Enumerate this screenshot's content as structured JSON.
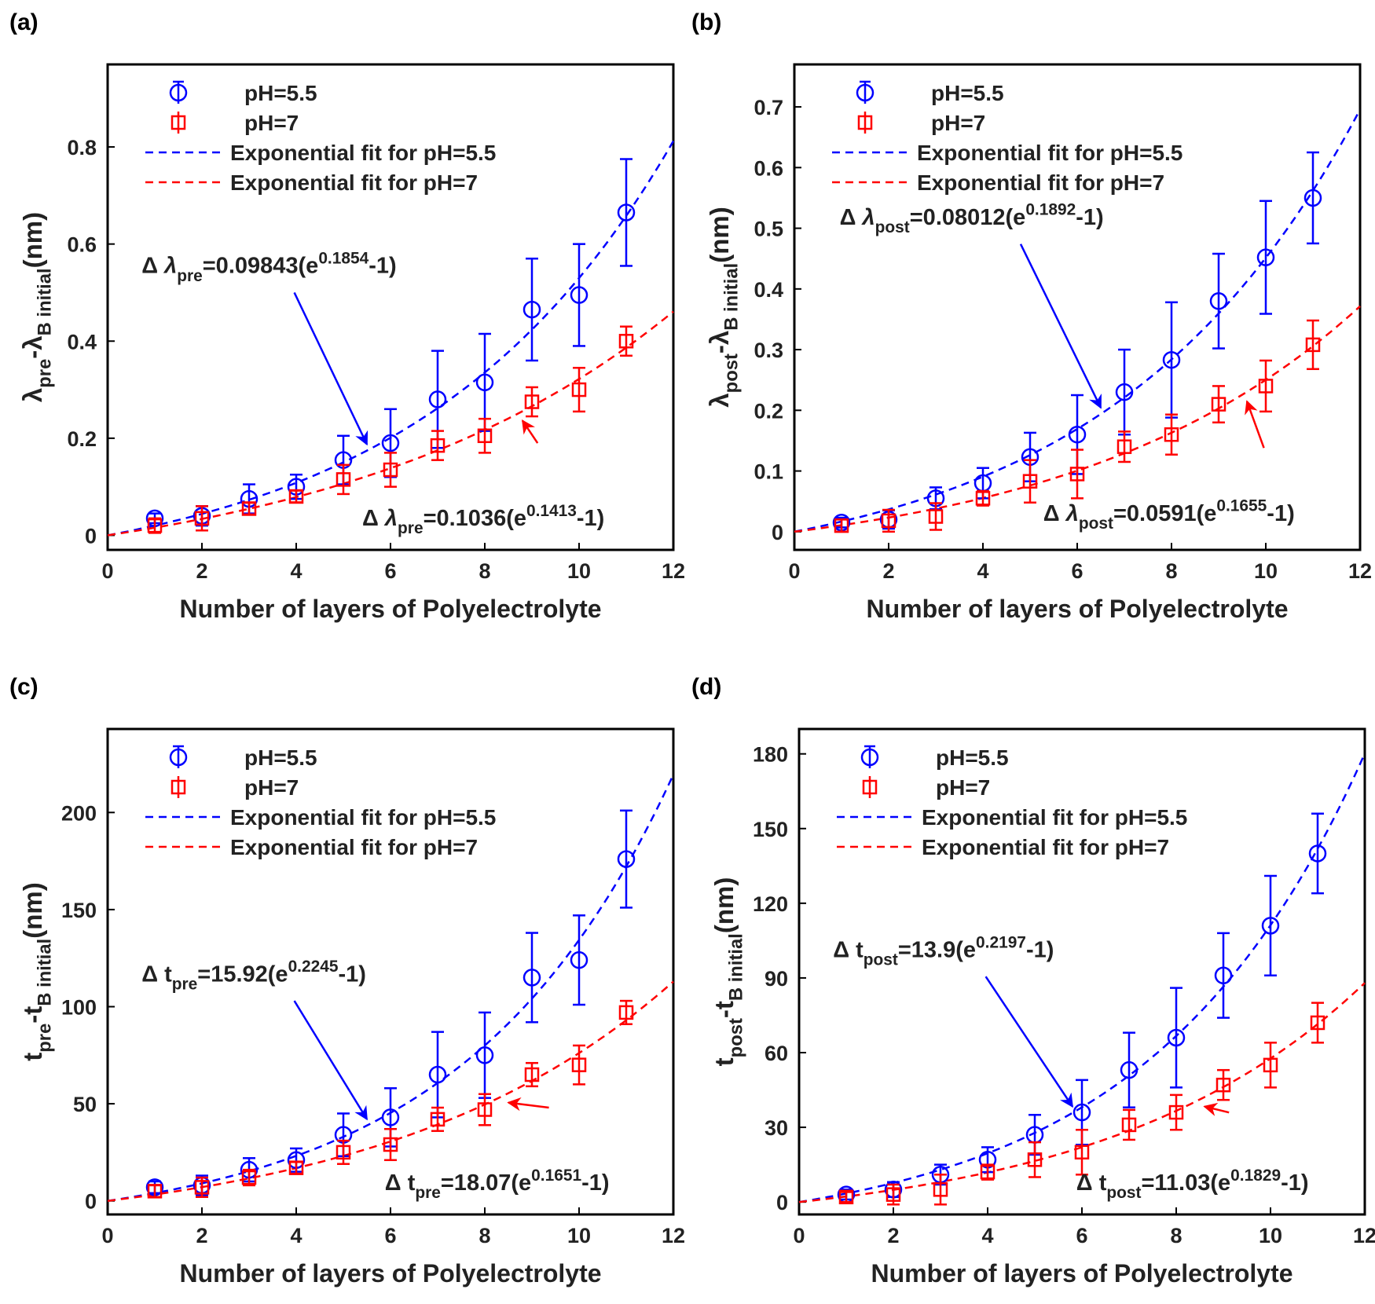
{
  "chart_data": [
    {
      "panel_label": "(a)",
      "type": "scatter",
      "xlabel": "Number of layers of Polyelectrolyte",
      "ylabel": {
        "parts": [
          {
            "t": "λ"
          },
          {
            "t": "pre",
            "s": "sub"
          },
          {
            "t": "-λ"
          },
          {
            "t": "B initial",
            "s": "sub"
          },
          {
            "t": "(nm)"
          }
        ]
      },
      "xlim": [
        0,
        12
      ],
      "ylim": [
        -0.03,
        0.97
      ],
      "xticks": [
        "0",
        "2",
        "4",
        "6",
        "8",
        "10",
        "12"
      ],
      "yticks": [
        "0",
        "0.2",
        "0.4",
        "0.6",
        "0.8"
      ],
      "legend_position": "top-left",
      "legend": [
        "pH=5.5",
        "pH=7",
        "Exponential fit for pH=5.5",
        "Exponential fit for pH=7"
      ],
      "x": [
        1,
        2,
        3,
        4,
        5,
        6,
        7,
        8,
        9,
        10,
        11
      ],
      "series": [
        {
          "name": "pH=5.5",
          "color": "#0000ff",
          "marker": "circle",
          "values": [
            0.035,
            0.04,
            0.075,
            0.1,
            0.155,
            0.19,
            0.28,
            0.315,
            0.465,
            0.495,
            0.665
          ],
          "errors": [
            0.01,
            0.02,
            0.03,
            0.025,
            0.05,
            0.07,
            0.1,
            0.1,
            0.105,
            0.105,
            0.11
          ]
        },
        {
          "name": "pH=7",
          "color": "#ff0000",
          "marker": "square",
          "values": [
            0.02,
            0.035,
            0.055,
            0.08,
            0.115,
            0.135,
            0.185,
            0.205,
            0.275,
            0.3,
            0.4
          ],
          "errors": [
            0.015,
            0.025,
            0.012,
            0.012,
            0.03,
            0.035,
            0.03,
            0.035,
            0.03,
            0.045,
            0.03
          ]
        }
      ],
      "fits": [
        {
          "name": "Exponential fit for pH=5.5",
          "color": "#0000ff",
          "a": 0.09843,
          "b": 0.1854
        },
        {
          "name": "Exponential fit for pH=7",
          "color": "#ff0000",
          "a": 0.1036,
          "b": 0.1413
        }
      ],
      "annotations": [
        {
          "color": "#0000ff",
          "text": {
            "parts": [
              {
                "t": "Δ "
              },
              {
                "t": "λ",
                "i": true
              },
              {
                "t": "pre",
                "s": "sub"
              },
              {
                "t": "=0.09843(e"
              },
              {
                "t": "0.1854",
                "s": "sup"
              },
              {
                "t": "-1)"
              }
            ]
          }
        },
        {
          "color": "#ff0000",
          "text": {
            "parts": [
              {
                "t": "Δ "
              },
              {
                "t": "λ",
                "i": true
              },
              {
                "t": "pre",
                "s": "sub"
              },
              {
                "t": "=0.1036(e"
              },
              {
                "t": "0.1413",
                "s": "sup"
              },
              {
                "t": "-1)"
              }
            ]
          }
        }
      ]
    },
    {
      "panel_label": "(b)",
      "type": "scatter",
      "xlabel": "Number of layers of Polyelectrolyte",
      "ylabel": {
        "parts": [
          {
            "t": "λ"
          },
          {
            "t": "post",
            "s": "sub"
          },
          {
            "t": "-λ"
          },
          {
            "t": "B initial",
            "s": "sub"
          },
          {
            "t": "(nm)"
          }
        ]
      },
      "xlim": [
        0,
        12
      ],
      "ylim": [
        -0.03,
        0.77
      ],
      "xticks": [
        "0",
        "2",
        "4",
        "6",
        "8",
        "10",
        "12"
      ],
      "yticks": [
        "0",
        "0.1",
        "0.2",
        "0.3",
        "0.4",
        "0.5",
        "0.6",
        "0.7"
      ],
      "legend_position": "top-left",
      "legend": [
        "pH=5.5",
        "pH=7",
        "Exponential fit for pH=5.5",
        "Exponential fit for pH=7"
      ],
      "x": [
        1,
        2,
        3,
        4,
        5,
        6,
        7,
        8,
        9,
        10,
        11
      ],
      "series": [
        {
          "name": "pH=5.5",
          "color": "#0000ff",
          "marker": "circle",
          "values": [
            0.015,
            0.02,
            0.055,
            0.08,
            0.123,
            0.16,
            0.23,
            0.283,
            0.38,
            0.452,
            0.55
          ],
          "errors": [
            0.008,
            0.015,
            0.018,
            0.025,
            0.04,
            0.065,
            0.07,
            0.095,
            0.078,
            0.093,
            0.075
          ]
        },
        {
          "name": "pH=7",
          "color": "#ff0000",
          "marker": "square",
          "values": [
            0.01,
            0.018,
            0.025,
            0.055,
            0.083,
            0.095,
            0.14,
            0.16,
            0.21,
            0.24,
            0.308
          ],
          "errors": [
            0.01,
            0.018,
            0.022,
            0.012,
            0.035,
            0.04,
            0.025,
            0.033,
            0.03,
            0.042,
            0.04
          ]
        }
      ],
      "fits": [
        {
          "name": "Exponential fit for pH=5.5",
          "color": "#0000ff",
          "a": 0.08012,
          "b": 0.1892
        },
        {
          "name": "Exponential fit for pH=7",
          "color": "#ff0000",
          "a": 0.0591,
          "b": 0.1655
        }
      ],
      "annotations": [
        {
          "color": "#0000ff",
          "text": {
            "parts": [
              {
                "t": "Δ "
              },
              {
                "t": "λ",
                "i": true
              },
              {
                "t": "post",
                "s": "sub"
              },
              {
                "t": "=0.08012(e"
              },
              {
                "t": "0.1892",
                "s": "sup"
              },
              {
                "t": "-1)"
              }
            ]
          }
        },
        {
          "color": "#ff0000",
          "text": {
            "parts": [
              {
                "t": "Δ "
              },
              {
                "t": "λ",
                "i": true
              },
              {
                "t": "post",
                "s": "sub"
              },
              {
                "t": "=0.0591(e"
              },
              {
                "t": "0.1655",
                "s": "sup"
              },
              {
                "t": "-1)"
              }
            ]
          }
        }
      ]
    },
    {
      "panel_label": "(c)",
      "type": "scatter",
      "xlabel": "Number of layers of Polyelectrolyte",
      "ylabel": {
        "parts": [
          {
            "t": "t"
          },
          {
            "t": "pre",
            "s": "sub"
          },
          {
            "t": "-t"
          },
          {
            "t": "B initial",
            "s": "sub"
          },
          {
            "t": "(nm)"
          }
        ]
      },
      "xlim": [
        0,
        12
      ],
      "ylim": [
        -7,
        243
      ],
      "xticks": [
        "0",
        "2",
        "4",
        "6",
        "8",
        "10",
        "12"
      ],
      "yticks": [
        "0",
        "50",
        "100",
        "150",
        "200"
      ],
      "legend_position": "top-left",
      "legend": [
        "pH=5.5",
        "pH=7",
        "Exponential fit for pH=5.5",
        "Exponential fit for pH=7"
      ],
      "x": [
        1,
        2,
        3,
        4,
        5,
        6,
        7,
        8,
        9,
        10,
        11
      ],
      "series": [
        {
          "name": "pH=5.5",
          "color": "#0000ff",
          "marker": "circle",
          "values": [
            7,
            8,
            16,
            21,
            34,
            43,
            65,
            75,
            115,
            124,
            176
          ],
          "errors": [
            3,
            5,
            6,
            6,
            11,
            15,
            22,
            22,
            23,
            23,
            25
          ]
        },
        {
          "name": "pH=7",
          "color": "#ff0000",
          "marker": "square",
          "values": [
            5,
            7,
            12,
            17,
            25,
            29,
            42,
            47,
            65,
            70,
            97
          ],
          "errors": [
            3,
            5,
            4,
            3,
            6,
            8,
            6,
            8,
            6,
            10,
            6
          ]
        }
      ],
      "fits": [
        {
          "name": "Exponential fit for pH=5.5",
          "color": "#0000ff",
          "a": 15.92,
          "b": 0.2245
        },
        {
          "name": "Exponential fit for pH=7",
          "color": "#ff0000",
          "a": 18.07,
          "b": 0.1651
        }
      ],
      "annotations": [
        {
          "color": "#0000ff",
          "text": {
            "parts": [
              {
                "t": "Δ t"
              },
              {
                "t": "pre",
                "s": "sub"
              },
              {
                "t": "=15.92(e"
              },
              {
                "t": "0.2245",
                "s": "sup"
              },
              {
                "t": "-1)"
              }
            ]
          }
        },
        {
          "color": "#ff0000",
          "text": {
            "parts": [
              {
                "t": "Δ t"
              },
              {
                "t": "pre",
                "s": "sub"
              },
              {
                "t": "=18.07(e"
              },
              {
                "t": "0.1651",
                "s": "sup"
              },
              {
                "t": "-1)"
              }
            ]
          }
        }
      ]
    },
    {
      "panel_label": "(d)",
      "type": "scatter",
      "xlabel": "Number of layers of Polyelectrolyte",
      "ylabel": {
        "parts": [
          {
            "t": "t"
          },
          {
            "t": "post",
            "s": "sub"
          },
          {
            "t": "-t"
          },
          {
            "t": "B initial",
            "s": "sub"
          },
          {
            "t": "(nm)"
          }
        ]
      },
      "xlim": [
        0,
        12
      ],
      "ylim": [
        -5,
        190
      ],
      "xticks": [
        "0",
        "2",
        "4",
        "6",
        "8",
        "10",
        "12"
      ],
      "yticks": [
        "0",
        "30",
        "60",
        "90",
        "120",
        "150",
        "180"
      ],
      "legend_position": "top-left",
      "legend": [
        "pH=5.5",
        "pH=7",
        "Exponential fit for pH=5.5",
        "Exponential fit for pH=7"
      ],
      "x": [
        1,
        2,
        3,
        4,
        5,
        6,
        7,
        8,
        9,
        10,
        11
      ],
      "series": [
        {
          "name": "pH=5.5",
          "color": "#0000ff",
          "marker": "circle",
          "values": [
            3,
            5,
            11,
            17,
            27,
            36,
            53,
            66,
            91,
            111,
            140
          ],
          "errors": [
            2,
            3,
            4,
            5,
            8,
            13,
            15,
            20,
            17,
            20,
            16
          ]
        },
        {
          "name": "pH=7",
          "color": "#ff0000",
          "marker": "square",
          "values": [
            2,
            3,
            5,
            12,
            17,
            20,
            31,
            36,
            47,
            55,
            72
          ],
          "errors": [
            2,
            4,
            6,
            3,
            7,
            9,
            6,
            7,
            6,
            9,
            8
          ]
        }
      ],
      "fits": [
        {
          "name": "Exponential fit for pH=5.5",
          "color": "#0000ff",
          "a": 13.9,
          "b": 0.2197
        },
        {
          "name": "Exponential fit for pH=7",
          "color": "#ff0000",
          "a": 11.03,
          "b": 0.1829
        }
      ],
      "annotations": [
        {
          "color": "#0000ff",
          "text": {
            "parts": [
              {
                "t": "Δ t"
              },
              {
                "t": "post",
                "s": "sub"
              },
              {
                "t": "=13.9(e"
              },
              {
                "t": "0.2197",
                "s": "sup"
              },
              {
                "t": "-1)"
              }
            ]
          }
        },
        {
          "color": "#ff0000",
          "text": {
            "parts": [
              {
                "t": "Δ t"
              },
              {
                "t": "post",
                "s": "sub"
              },
              {
                "t": "=11.03(e"
              },
              {
                "t": "0.1829",
                "s": "sup"
              },
              {
                "t": "-1)"
              }
            ]
          }
        }
      ]
    }
  ]
}
